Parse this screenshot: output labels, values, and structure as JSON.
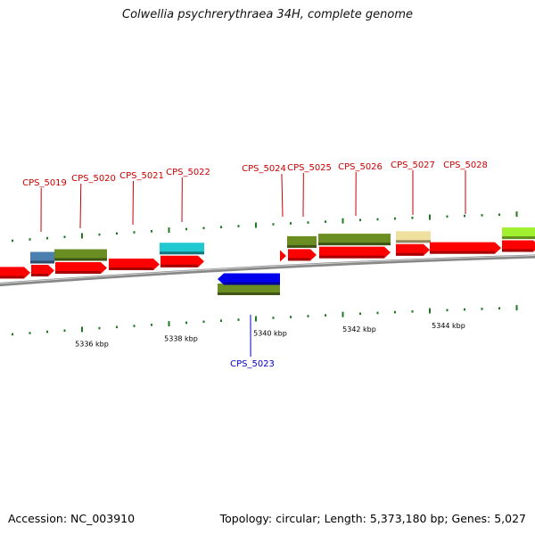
{
  "title": "Colwellia psychrerythraea 34H, complete genome",
  "footer": {
    "accession": "Accession: NC_003910",
    "summary": "Topology: circular; Length: 5,373,180 bp; Genes: 5,027"
  },
  "colors": {
    "cds_forward": "#ff0000",
    "cds_reverse": "#0000ee",
    "label_forward": "#cc0000",
    "label_reverse": "#0000cc",
    "feature_olive": "#6b8e23",
    "feature_steelblue": "#4a7fb0",
    "feature_cyan": "#20c8d0",
    "feature_khaki": "#f0e0a0",
    "feature_lime": "#a0f030",
    "backbone": "#888888",
    "ticks": "#1e7a1e"
  },
  "scale": {
    "unit": "kbp",
    "labels": [
      {
        "kbp": 5336,
        "text": "5336 kbp"
      },
      {
        "kbp": 5338,
        "text": "5338 kbp"
      },
      {
        "kbp": 5340,
        "text": "5340 kbp"
      },
      {
        "kbp": 5342,
        "text": "5342 kbp"
      },
      {
        "kbp": 5344,
        "text": "5344 kbp"
      }
    ]
  },
  "genes": [
    {
      "name": "CPS_5019",
      "label": "CPS_5019",
      "strand": "forward"
    },
    {
      "name": "CPS_5020",
      "label": "CPS_5020",
      "strand": "forward"
    },
    {
      "name": "CPS_5021",
      "label": "CPS_5021",
      "strand": "forward"
    },
    {
      "name": "CPS_5022",
      "label": "CPS_5022",
      "strand": "forward"
    },
    {
      "name": "CPS_5023",
      "label": "CPS_5023",
      "strand": "reverse"
    },
    {
      "name": "CPS_5024",
      "label": "CPS_5024",
      "strand": "forward"
    },
    {
      "name": "CPS_5025",
      "label": "CPS_5025",
      "strand": "forward"
    },
    {
      "name": "CPS_5026",
      "label": "CPS_5026",
      "strand": "forward"
    },
    {
      "name": "CPS_5027",
      "label": "CPS_5027",
      "strand": "forward"
    },
    {
      "name": "CPS_5028",
      "label": "CPS_5028",
      "strand": "forward"
    }
  ]
}
